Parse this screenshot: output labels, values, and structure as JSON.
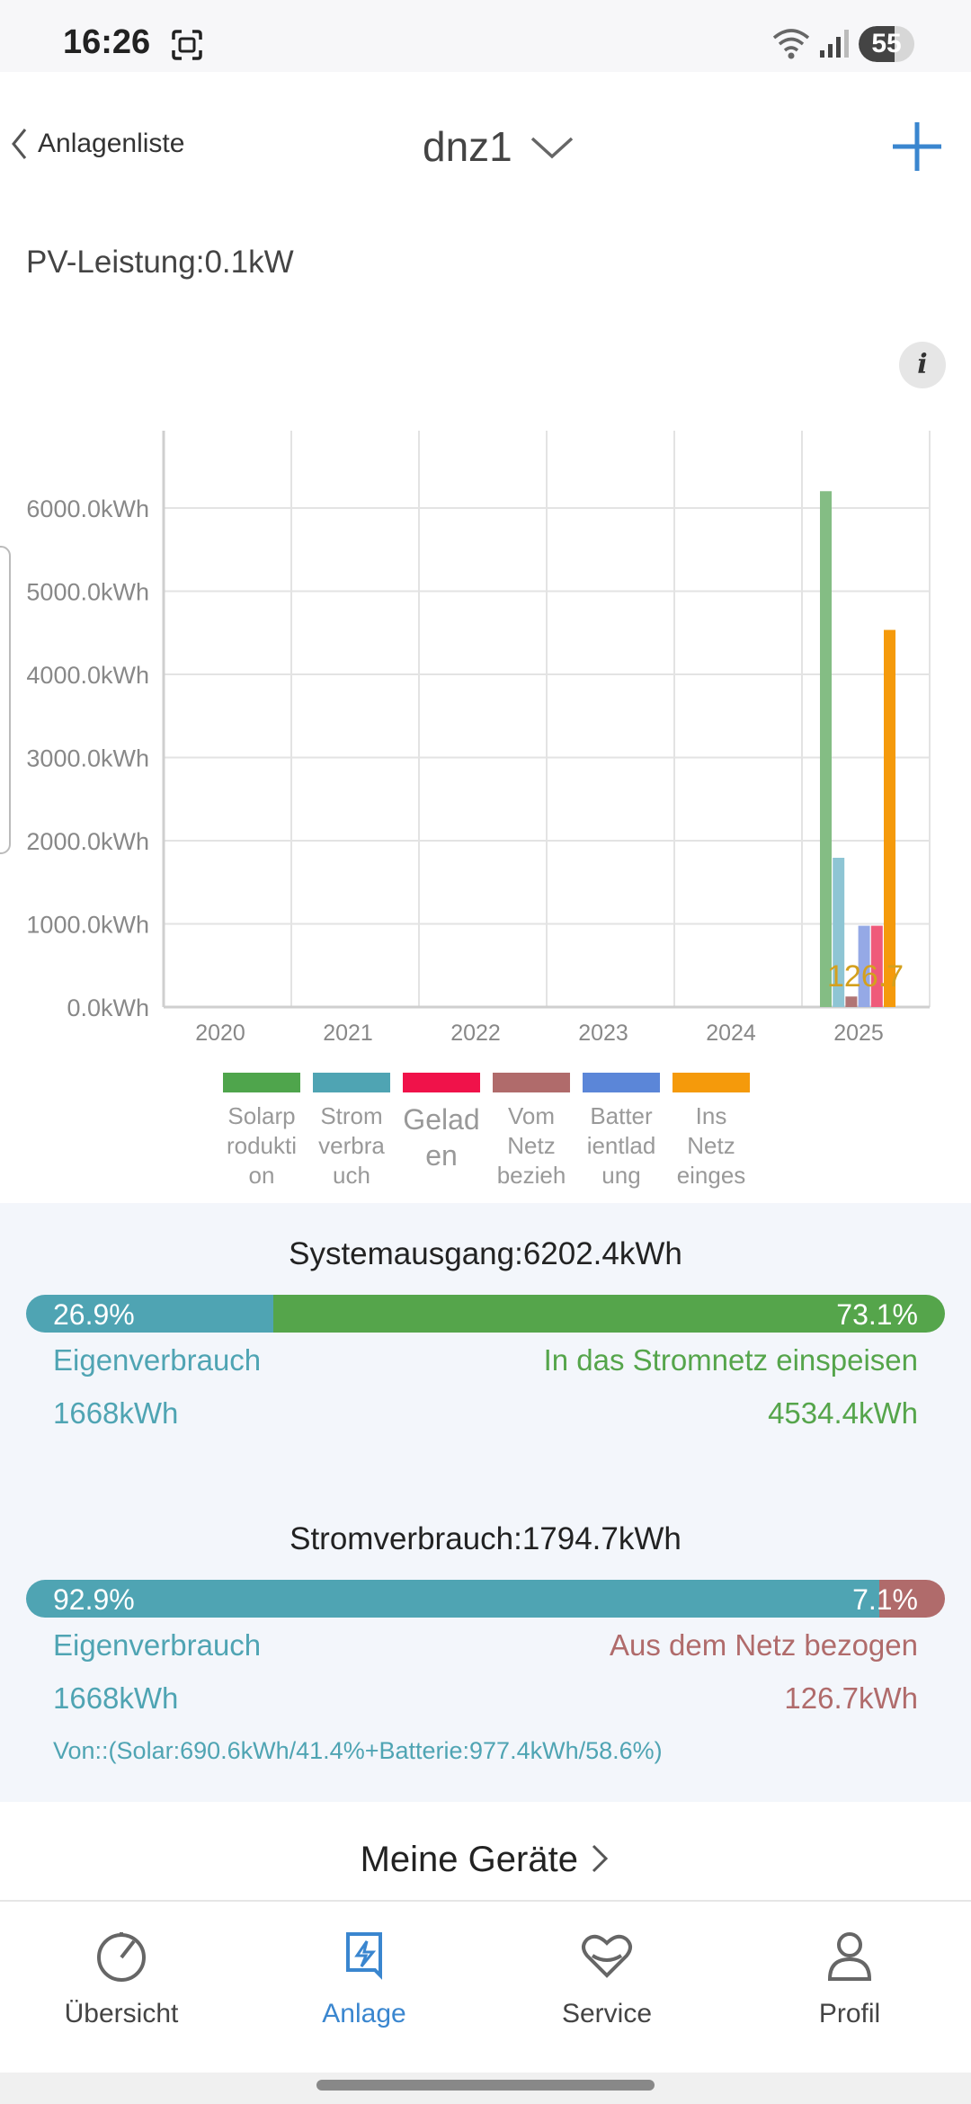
{
  "status_bar": {
    "time": "16:26",
    "battery": "55"
  },
  "header": {
    "back_label": "Anlagenliste",
    "title": "dnz1"
  },
  "pv_power": "PV-Leistung:0.1kW",
  "chart_data": {
    "type": "bar",
    "categories": [
      "2020",
      "2021",
      "2022",
      "2023",
      "2024",
      "2025"
    ],
    "y_ticks": [
      "0.0kWh",
      "1000.0kWh",
      "2000.0kWh",
      "3000.0kWh",
      "4000.0kWh",
      "5000.0kWh",
      "6000.0kWh"
    ],
    "ylim": [
      0,
      6800
    ],
    "grid": true,
    "data_label": "126.7",
    "series": [
      {
        "name": "Solarproduktion",
        "color": "#84bd84",
        "values": [
          0,
          0,
          0,
          0,
          0,
          6202.4
        ]
      },
      {
        "name": "Stromverbrauch",
        "color": "#8ec5d4",
        "values": [
          0,
          0,
          0,
          0,
          0,
          1794.7
        ]
      },
      {
        "name": "Vom Netz bezieh",
        "color": "#b07575",
        "values": [
          0,
          0,
          0,
          0,
          0,
          126.7
        ]
      },
      {
        "name": "Batterientladung",
        "color": "#95a9e6",
        "values": [
          0,
          0,
          0,
          0,
          0,
          977.4
        ]
      },
      {
        "name": "Geladen",
        "color": "#ef5a7a",
        "values": [
          0,
          0,
          0,
          0,
          0,
          977.4
        ]
      },
      {
        "name": "Ins Netz einges",
        "color": "#f59a0b",
        "values": [
          0,
          0,
          0,
          0,
          0,
          4534.4
        ]
      }
    ]
  },
  "legend": [
    {
      "color": "#4fa54c",
      "label": "Solarproduktion"
    },
    {
      "color": "#4fa4b3",
      "label": "Stromverbrauch"
    },
    {
      "color": "#f0124a",
      "label": "Geladen"
    },
    {
      "color": "#b06b6b",
      "label": "Vom Netz bezieh"
    },
    {
      "color": "#5b86d8",
      "label": "Batterientladung"
    },
    {
      "color": "#f59a0b",
      "label": "Ins Netz einges"
    }
  ],
  "system_output": {
    "title": "Systemausgang:6202.4kWh",
    "left_pct": "26.9%",
    "left_fraction": 0.269,
    "right_pct": "73.1%",
    "left_label": "Eigenverbrauch",
    "right_label": "In das Stromnetz einspeisen",
    "left_value": "1668kWh",
    "right_value": "4534.4kWh"
  },
  "consumption": {
    "title": "Stromverbrauch:1794.7kWh",
    "left_pct": "92.9%",
    "left_fraction": 0.929,
    "right_pct": "7.1%",
    "left_label": "Eigenverbrauch",
    "right_label": "Aus dem Netz bezogen",
    "left_value": "1668kWh",
    "right_value": "126.7kWh",
    "source_note": "Von::(Solar:690.6kWh/41.4%+Batterie:977.4kWh/58.6%)"
  },
  "devices_link": "Meine Geräte",
  "nav": [
    {
      "label": "Übersicht",
      "icon": "dashboard-icon"
    },
    {
      "label": "Anlage",
      "icon": "plant-icon"
    },
    {
      "label": "Service",
      "icon": "service-heart-icon"
    },
    {
      "label": "Profil",
      "icon": "profile-icon"
    }
  ]
}
